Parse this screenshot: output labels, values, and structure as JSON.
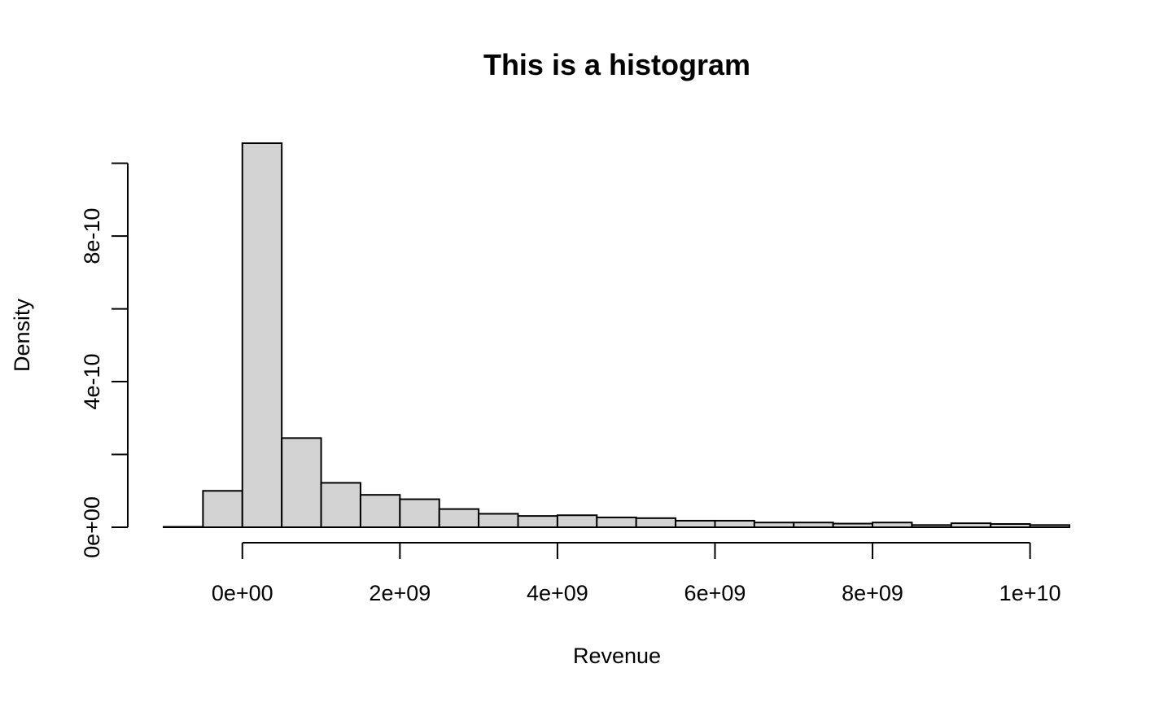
{
  "chart_data": {
    "type": "bar",
    "title": "This is a histogram",
    "xlabel": "Revenue",
    "ylabel": "Density",
    "bin_width": 500000000,
    "bins": [
      {
        "start": -1000000000,
        "end": -500000000,
        "density": 1e-12
      },
      {
        "start": -500000000,
        "end": 0,
        "density": 1e-10
      },
      {
        "start": 0,
        "end": 500000000,
        "density": 1.055e-09
      },
      {
        "start": 500000000,
        "end": 1000000000,
        "density": 2.45e-10
      },
      {
        "start": 1000000000,
        "end": 1500000000,
        "density": 1.22e-10
      },
      {
        "start": 1500000000,
        "end": 2000000000,
        "density": 8.9e-11
      },
      {
        "start": 2000000000,
        "end": 2500000000,
        "density": 7.7e-11
      },
      {
        "start": 2500000000,
        "end": 3000000000,
        "density": 5e-11
      },
      {
        "start": 3000000000,
        "end": 3500000000,
        "density": 3.7e-11
      },
      {
        "start": 3500000000,
        "end": 4000000000,
        "density": 3.1e-11
      },
      {
        "start": 4000000000,
        "end": 4500000000,
        "density": 3.3e-11
      },
      {
        "start": 4500000000,
        "end": 5000000000,
        "density": 2.7e-11
      },
      {
        "start": 5000000000,
        "end": 5500000000,
        "density": 2.5e-11
      },
      {
        "start": 5500000000,
        "end": 6000000000,
        "density": 1.8e-11
      },
      {
        "start": 6000000000,
        "end": 6500000000,
        "density": 1.8e-11
      },
      {
        "start": 6500000000,
        "end": 7000000000,
        "density": 1.3e-11
      },
      {
        "start": 7000000000,
        "end": 7500000000,
        "density": 1.3e-11
      },
      {
        "start": 7500000000,
        "end": 8000000000,
        "density": 1e-11
      },
      {
        "start": 8000000000,
        "end": 8500000000,
        "density": 1.3e-11
      },
      {
        "start": 8500000000,
        "end": 9000000000,
        "density": 6e-12
      },
      {
        "start": 9000000000,
        "end": 9500000000,
        "density": 1.1e-11
      },
      {
        "start": 9500000000,
        "end": 10000000000,
        "density": 9e-12
      },
      {
        "start": 10000000000,
        "end": 10500000000,
        "density": 6e-12
      }
    ],
    "x_ticks": [
      {
        "value": 0,
        "label": "0e+00"
      },
      {
        "value": 2000000000,
        "label": "2e+09"
      },
      {
        "value": 4000000000,
        "label": "4e+09"
      },
      {
        "value": 6000000000,
        "label": "6e+09"
      },
      {
        "value": 8000000000,
        "label": "8e+09"
      },
      {
        "value": 10000000000,
        "label": "1e+10"
      }
    ],
    "y_ticks": [
      {
        "value": 0,
        "label": "0e+00"
      },
      {
        "value": 2e-10,
        "label": ""
      },
      {
        "value": 4e-10,
        "label": "4e-10"
      },
      {
        "value": 6e-10,
        "label": ""
      },
      {
        "value": 8e-10,
        "label": "8e-10"
      },
      {
        "value": 1e-09,
        "label": ""
      }
    ],
    "xlim": [
      -1000000000,
      10500000000
    ],
    "ylim": [
      0,
      1.055e-09
    ],
    "x_axis_range": [
      0,
      10000000000
    ],
    "y_axis_range": [
      0,
      1e-09
    ],
    "grid": false,
    "legend": "none",
    "colors": {
      "bar_fill": "#d3d3d3",
      "bar_stroke": "#000000",
      "text": "#000000",
      "background": "#ffffff"
    }
  }
}
